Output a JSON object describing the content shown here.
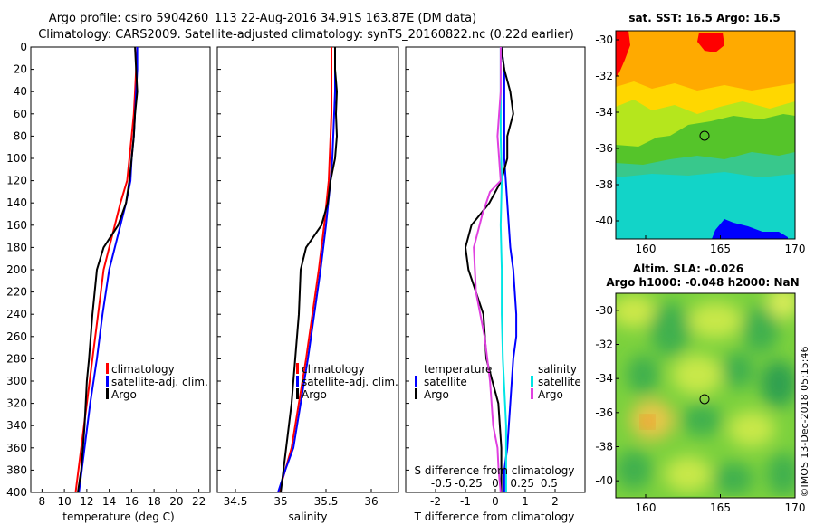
{
  "header": {
    "title_line1": "Argo profile: csiro 5904260_113 22-Aug-2016 34.91S 163.87E (DM data)",
    "title_line2": "Climatology: CARS2009. Satellite-adjusted climatology: synTS_20160822.nc (0.22d earlier)"
  },
  "colors": {
    "climatology": "#ff0000",
    "satellite_adj": "#0000ff",
    "argo": "#000000",
    "sat_diff": "#00e5e5",
    "argo_diff_s": "#e040e0"
  },
  "chart_data": [
    {
      "type": "line",
      "name": "temperature-panel",
      "xlabel": "temperature (deg C)",
      "ylabel": "",
      "xlim": [
        7,
        23
      ],
      "ylim": [
        400,
        0
      ],
      "xticks": [
        8,
        10,
        12,
        14,
        16,
        18,
        20,
        22
      ],
      "yticks": [
        0,
        20,
        40,
        60,
        80,
        100,
        120,
        140,
        160,
        180,
        200,
        220,
        240,
        260,
        280,
        300,
        320,
        340,
        360,
        380,
        400
      ],
      "legend": [
        "climatology",
        "satellite-adj. clim.",
        "Argo"
      ],
      "series": [
        {
          "name": "climatology",
          "x": [
            16.5,
            16.4,
            16.3,
            16.2,
            16.0,
            15.8,
            15.6,
            15.0,
            14.5,
            14.0,
            13.5,
            13.0,
            12.5,
            12.0,
            11.5,
            11.0
          ],
          "y": [
            0,
            20,
            40,
            60,
            80,
            100,
            120,
            140,
            160,
            180,
            200,
            240,
            280,
            320,
            360,
            400
          ]
        },
        {
          "name": "satellite-adj. clim.",
          "x": [
            16.5,
            16.5,
            16.4,
            16.3,
            16.2,
            16.0,
            15.9,
            15.5,
            15.0,
            14.5,
            14.0,
            13.4,
            12.9,
            12.3,
            11.8,
            11.3
          ],
          "y": [
            0,
            20,
            40,
            60,
            80,
            100,
            120,
            140,
            160,
            180,
            200,
            240,
            280,
            320,
            360,
            400
          ]
        },
        {
          "name": "Argo",
          "x": [
            16.3,
            16.4,
            16.5,
            16.3,
            16.2,
            16.0,
            15.8,
            15.5,
            14.8,
            13.5,
            12.9,
            12.5,
            12.2,
            12.0,
            11.8,
            11.5,
            11.2
          ],
          "y": [
            0,
            20,
            40,
            60,
            80,
            100,
            120,
            140,
            160,
            180,
            200,
            240,
            280,
            300,
            340,
            380,
            400
          ]
        }
      ]
    },
    {
      "type": "line",
      "name": "salinity-panel",
      "xlabel": "salinity",
      "xlim": [
        34.3,
        36.3
      ],
      "ylim": [
        400,
        0
      ],
      "xticks": [
        34.5,
        35,
        35.5,
        36
      ],
      "xtick_labels": [
        "34.5",
        "35",
        "35.5",
        "36"
      ],
      "legend": [
        "climatology",
        "satellite-adj. clim.",
        "Argo"
      ],
      "series": [
        {
          "name": "climatology",
          "x": [
            35.56,
            35.56,
            35.56,
            35.56,
            35.55,
            35.54,
            35.53,
            35.48,
            35.42,
            35.35,
            35.28,
            35.2,
            35.12,
            35.05,
            34.98
          ],
          "y": [
            0,
            20,
            40,
            60,
            80,
            100,
            120,
            160,
            200,
            240,
            280,
            320,
            360,
            380,
            400
          ]
        },
        {
          "name": "satellite-adj. clim.",
          "x": [
            35.6,
            35.6,
            35.6,
            35.59,
            35.58,
            35.57,
            35.55,
            35.5,
            35.44,
            35.37,
            35.3,
            35.22,
            35.14,
            35.05,
            34.97
          ],
          "y": [
            0,
            20,
            40,
            60,
            80,
            100,
            120,
            160,
            200,
            240,
            280,
            320,
            360,
            380,
            400
          ]
        },
        {
          "name": "Argo",
          "x": [
            35.6,
            35.6,
            35.62,
            35.61,
            35.62,
            35.6,
            35.55,
            35.52,
            35.45,
            35.28,
            35.22,
            35.2,
            35.16,
            35.12,
            35.06,
            35.0
          ],
          "y": [
            0,
            20,
            40,
            60,
            80,
            100,
            120,
            140,
            160,
            180,
            200,
            240,
            280,
            320,
            360,
            400
          ]
        }
      ]
    },
    {
      "type": "line",
      "name": "difference-panel",
      "xlabel": "T difference from climatology",
      "xlabel_top": "S difference from climatology",
      "xlim": [
        -3,
        3
      ],
      "ylim": [
        400,
        0
      ],
      "xticks": [
        -2,
        -1,
        0,
        1,
        2
      ],
      "xtick_labels": [
        "-2",
        "-1",
        "0",
        "1",
        "2"
      ],
      "top_ticks": [
        "-0.5",
        "-0.25",
        "0",
        "0.25",
        "0.5"
      ],
      "legend_left_title": "temperature",
      "legend_right_title": "salinity",
      "legend": [
        "satellite",
        "Argo",
        "satellite",
        "Argo"
      ],
      "series": [
        {
          "name": "T satellite",
          "x": [
            0.2,
            0.3,
            0.3,
            0.3,
            0.3,
            0.3,
            0.4,
            0.5,
            0.6,
            0.7,
            0.7,
            0.6,
            0.5,
            0.4,
            0.3,
            0.3
          ],
          "y": [
            0,
            20,
            40,
            60,
            80,
            100,
            140,
            180,
            200,
            240,
            260,
            280,
            320,
            360,
            380,
            400
          ]
        },
        {
          "name": "T Argo",
          "x": [
            0.2,
            0.3,
            0.5,
            0.6,
            0.4,
            0.4,
            0.2,
            -0.2,
            -0.8,
            -1.0,
            -0.9,
            -0.4,
            -0.3,
            0.1,
            0.2,
            0.2
          ],
          "y": [
            0,
            20,
            40,
            60,
            80,
            100,
            120,
            140,
            160,
            180,
            200,
            240,
            280,
            320,
            360,
            400
          ]
        },
        {
          "name": "S satellite",
          "x": [
            0.05,
            0.05,
            0.05,
            0.06,
            0.05,
            0.06,
            0.06,
            0.07,
            0.08,
            0.09,
            0.1,
            0.1,
            0.1,
            0.1
          ],
          "y": [
            0,
            40,
            80,
            120,
            160,
            200,
            240,
            280,
            300,
            320,
            340,
            360,
            380,
            400
          ]
        },
        {
          "name": "S Argo",
          "x": [
            0.05,
            0.05,
            0.02,
            0.05,
            -0.05,
            -0.12,
            -0.2,
            -0.18,
            -0.1,
            -0.05,
            -0.02,
            0.02,
            0.03,
            0.05
          ],
          "y": [
            0,
            40,
            80,
            120,
            130,
            150,
            180,
            220,
            260,
            300,
            340,
            360,
            380,
            400
          ]
        }
      ]
    },
    {
      "type": "heatmap",
      "name": "sst-map",
      "title": "sat. SST: 16.5 Argo: 16.5",
      "xlim": [
        158,
        170
      ],
      "ylim": [
        -41,
        -29.5
      ],
      "xticks": [
        160,
        165,
        170
      ],
      "yticks": [
        -30,
        -32,
        -34,
        -36,
        -38,
        -40
      ],
      "marker": {
        "lon": 163.87,
        "lat": -34.91
      }
    },
    {
      "type": "heatmap",
      "name": "sla-map",
      "title_line1": "Altim. SLA: -0.026",
      "title_line2": "Argo h1000: -0.048 h2000: NaN",
      "xlim": [
        158,
        170
      ],
      "ylim": [
        -41,
        -29
      ],
      "xticks": [
        160,
        165,
        170
      ],
      "yticks": [
        -30,
        -32,
        -34,
        -36,
        -38,
        -40
      ],
      "marker": {
        "lon": 163.87,
        "lat": -34.91
      }
    }
  ],
  "stamp": "©IMOS 13-Dec-2018 05:15:46"
}
